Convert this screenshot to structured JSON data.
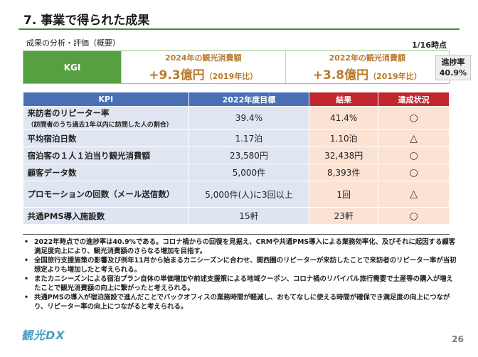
{
  "header": {
    "title": "7. 事業で得られた成果",
    "subtitle": "成果の分析・評価（概要）",
    "as_of": "1/16時点"
  },
  "kgi": {
    "label": "KGI",
    "cells": [
      {
        "label": "2024年の観光消費額",
        "value": "+9.3億円",
        "note": "（2019年比）"
      },
      {
        "label": "2022年の観光消費額",
        "value": "+3.8億円",
        "note": "（2019年比）"
      }
    ],
    "progress_label": "進捗率",
    "progress_value": "40.9%"
  },
  "table": {
    "headers": [
      "KPI",
      "2022年度目標",
      "結果",
      "達成状況"
    ],
    "rows": [
      {
        "kpi": "来訪者のリピーター率",
        "sub": "（訪問者のうち過去1年以内に訪問した人の割合）",
        "target": "39.4%",
        "result": "41.4%",
        "status": "○"
      },
      {
        "kpi": "平均宿泊日数",
        "sub": "",
        "target": "1.17泊",
        "result": "1.10泊",
        "status": "△"
      },
      {
        "kpi": "宿泊客の１人１泊当り観光消費額",
        "sub": "",
        "target": "23,580円",
        "result": "32,438円",
        "status": "○"
      },
      {
        "kpi": "顧客データ数",
        "sub": "",
        "target": "5,000件",
        "result": "8,393件",
        "status": "○"
      },
      {
        "kpi": "プロモーションの回数（メール送信数）",
        "sub": "",
        "target": "5,000件(人)に3回以上",
        "result": "1回",
        "status": "△"
      },
      {
        "kpi": "共通PMS導入施設数",
        "sub": "",
        "target": "15軒",
        "result": "23軒",
        "status": "○"
      }
    ]
  },
  "notes": [
    "2022年時点での進捗率は40.9%である。コロナ禍からの回復を見据え、CRMや共通PMS導入による業務効率化、及びそれに起因する顧客満足度向上により、観光消費額のさらなる増加を目指す。",
    "全国旅行支援施策の影響及び例年11月から始まるカニシーズンに合わせ、関西圏のリピーターが来訪したことで来訪者のリピーター率が当初想定よりも増加したと考えられる。",
    "またカニシーズンによる宿泊プラン自体の単価増加や前述支援策による地域クーポン、コロナ禍のリバイバル旅行需要で土産等の購入が増えたことで観光消費額の向上に繋がったと考えられる。",
    "共通PMSの導入が宿泊施設で進んだことでバックオフィスの業務時間が軽減し、おもてなしに使える時間が確保でき満足度の向上につながり、リピーター率の向上につながると考えられる。"
  ],
  "footer": {
    "logo_text": "観光DX",
    "page_number": "26"
  }
}
